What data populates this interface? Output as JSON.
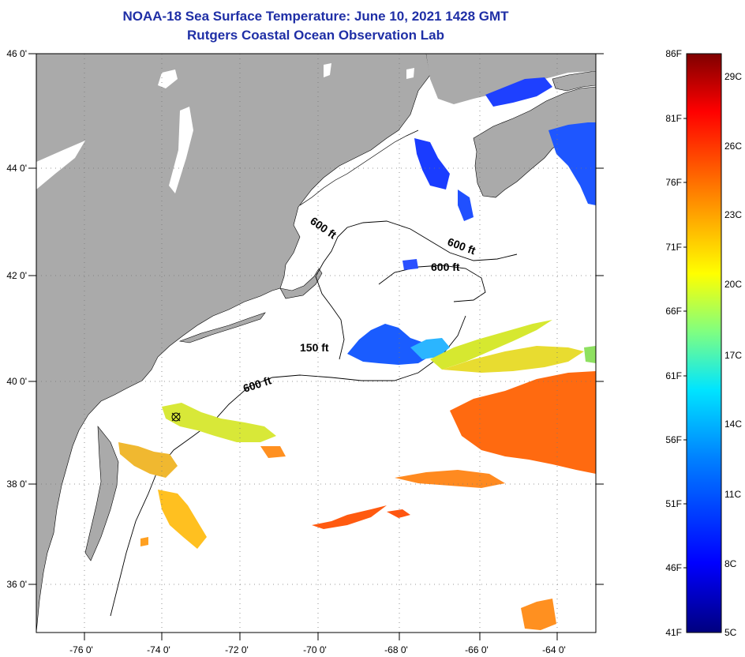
{
  "title": {
    "line1": "NOAA-18 Sea Surface Temperature:  June 10, 2021 1428 GMT",
    "line2": "Rutgers Coastal Ocean Observation Lab"
  },
  "map": {
    "lat_labels": [
      "46 0'",
      "44 0'",
      "42 0'",
      "40 0'",
      "38 0'",
      "36 0'"
    ],
    "lon_labels": [
      "-76 0'",
      "-74 0'",
      "-72 0'",
      "-70 0'",
      "-68 0'",
      "-66 0'",
      "-64 0'"
    ],
    "isobath_labels": [
      "600 ft",
      "600 ft",
      "600 ft",
      "150 ft",
      "600 ft"
    ],
    "land_color": "#aaaaaa",
    "ocean_color": "#ffffff"
  },
  "colorbar": {
    "f_labels": [
      "86F",
      "81F",
      "76F",
      "71F",
      "66F",
      "61F",
      "56F",
      "51F",
      "46F",
      "41F"
    ],
    "c_labels": [
      "29C",
      "26C",
      "23C",
      "20C",
      "17C",
      "14C",
      "11C",
      "8C",
      "5C"
    ],
    "stops": [
      "#00007f",
      "#0000ff",
      "#0080ff",
      "#00e5ff",
      "#80ff80",
      "#ffff00",
      "#ff8000",
      "#ff0000",
      "#7f0000"
    ]
  }
}
